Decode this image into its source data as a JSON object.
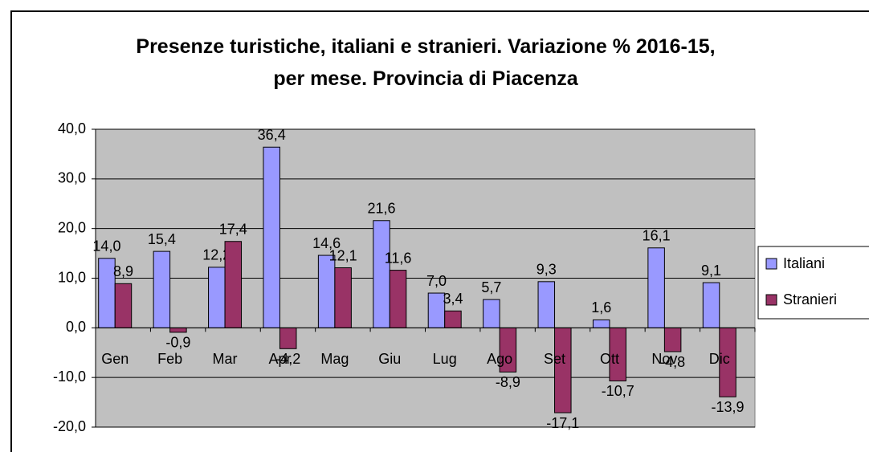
{
  "chart_data": {
    "type": "bar",
    "title": "Presenze turistiche, italiani e stranieri. Variazione % 2016-15, per mese. Provincia di Piacenza",
    "categories": [
      "Gen",
      "Feb",
      "Mar",
      "Apr",
      "Mag",
      "Giu",
      "Lug",
      "Ago",
      "Set",
      "Ott",
      "Nov",
      "Dic"
    ],
    "series": [
      {
        "name": "Italiani",
        "color": "#9999ff",
        "values": [
          14.0,
          15.4,
          12.2,
          36.4,
          14.6,
          21.6,
          7.0,
          5.7,
          9.3,
          1.6,
          16.1,
          9.1
        ],
        "value_labels": [
          "14,0",
          "15,4",
          "12,2",
          "36,4",
          "14,6",
          "21,6",
          "7,0",
          "5,7",
          "9,3",
          "1,6",
          "16,1",
          "9,1"
        ]
      },
      {
        "name": "Stranieri",
        "color": "#993366",
        "values": [
          8.9,
          -0.9,
          17.4,
          -4.2,
          12.1,
          11.6,
          3.4,
          -8.9,
          -17.1,
          -10.7,
          -4.8,
          -13.9
        ],
        "value_labels": [
          "8,9",
          "-0,9",
          "17,4",
          "-4,2",
          "12,1",
          "11,6",
          "3,4",
          "-8,9",
          "-17,1",
          "-10,7",
          "-4,8",
          "-13,9"
        ]
      }
    ],
    "ylim": [
      -20,
      40
    ],
    "yticks": [
      {
        "value": -20,
        "label": "-20,0"
      },
      {
        "value": -10,
        "label": "-10,0"
      },
      {
        "value": 0,
        "label": "0,0"
      },
      {
        "value": 10,
        "label": "10,0"
      },
      {
        "value": 20,
        "label": "20,0"
      },
      {
        "value": 30,
        "label": "30,0"
      },
      {
        "value": 40,
        "label": "40,0"
      }
    ],
    "grid": true,
    "legend": "right"
  }
}
